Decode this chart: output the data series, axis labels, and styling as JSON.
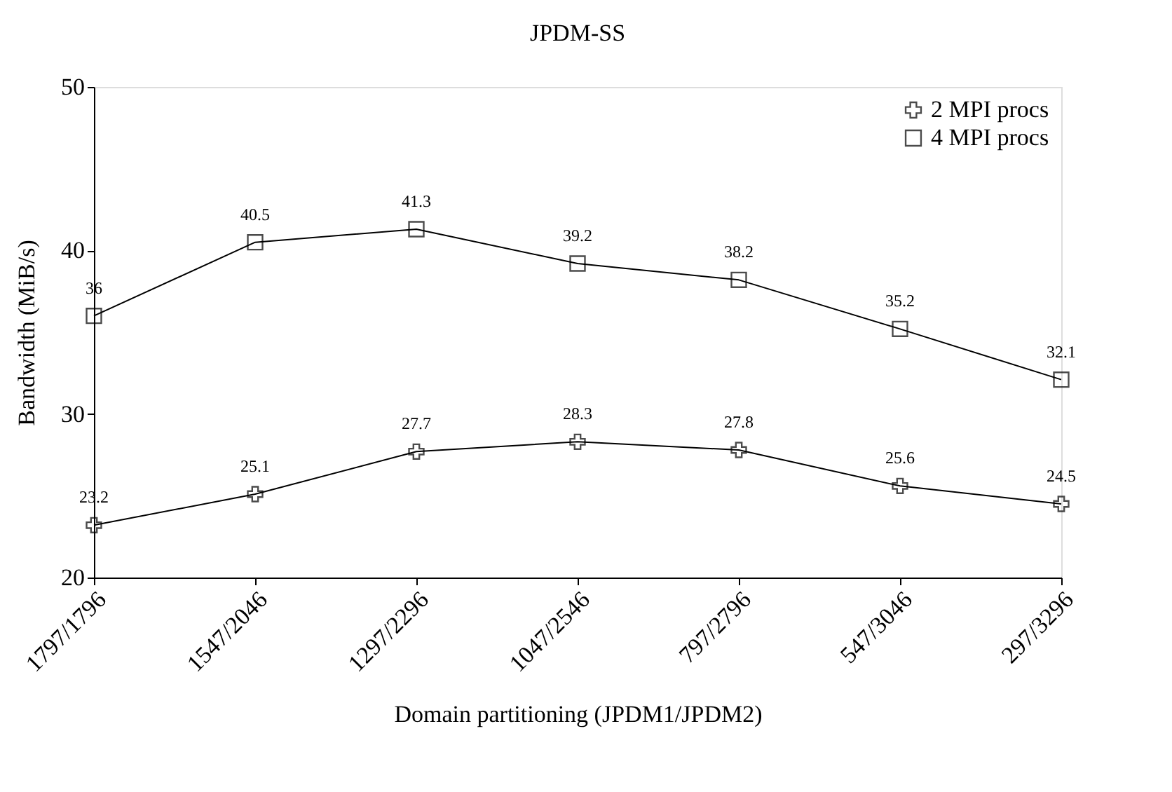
{
  "chart_data": {
    "type": "line",
    "title": "JPDM-SS",
    "xlabel": "Domain partitioning (JPDM1/JPDM2)",
    "ylabel": "Bandwidth (MiB/s)",
    "categories": [
      "1797/1796",
      "1547/2046",
      "1297/2296",
      "1047/2546",
      "797/2796",
      "547/3046",
      "297/3296"
    ],
    "series": [
      {
        "name": "2 MPI procs",
        "color": "#000000",
        "marker": "cross",
        "values": [
          23.2,
          25.1,
          27.7,
          28.3,
          27.8,
          25.6,
          24.5
        ]
      },
      {
        "name": "4 MPI procs",
        "color": "#000000",
        "marker": "square",
        "values": [
          36,
          40.5,
          41.3,
          39.2,
          38.2,
          35.2,
          32.1
        ]
      }
    ],
    "ylim": [
      20,
      50
    ],
    "yticks": [
      20,
      30,
      40,
      50
    ],
    "grid": false,
    "legend": "top right",
    "data_labels": true,
    "line_style": "solid"
  }
}
